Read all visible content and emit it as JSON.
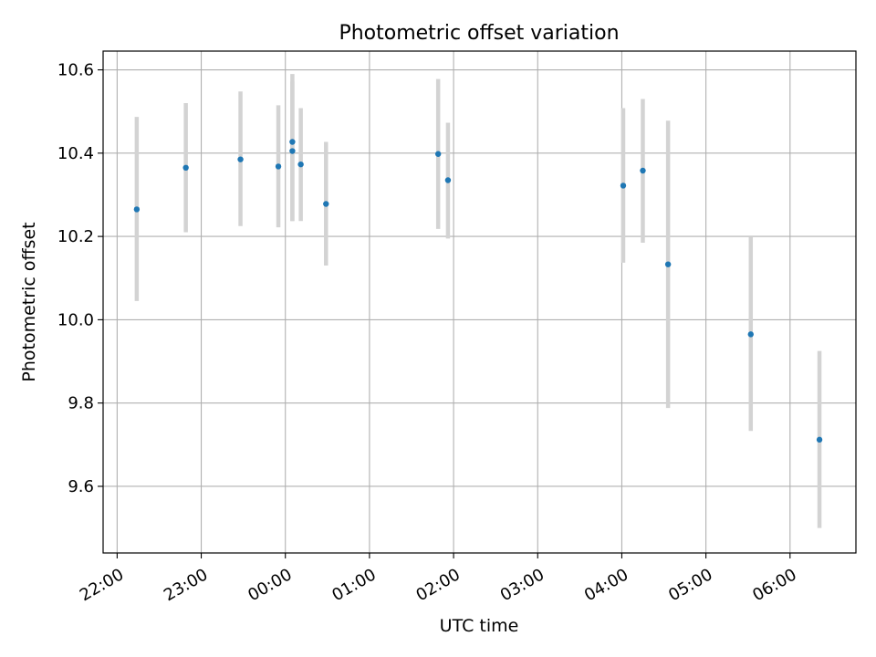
{
  "chart_data": {
    "type": "scatter",
    "title": "Photometric offset variation",
    "xlabel": "UTC time",
    "ylabel": "Photometric offset",
    "x_axis": {
      "kind": "time",
      "range": [
        "21:50",
        "06:47"
      ],
      "ticks": [
        "22:00",
        "23:00",
        "00:00",
        "01:00",
        "02:00",
        "03:00",
        "04:00",
        "05:00",
        "06:00"
      ]
    },
    "y_axis": {
      "range": [
        9.44,
        10.645
      ],
      "ticks": [
        "9.6",
        "9.8",
        "10.0",
        "10.2",
        "10.4",
        "10.6"
      ]
    },
    "grid": true,
    "points": [
      {
        "x": "22:14",
        "y": 10.265,
        "low": 10.045,
        "high": 10.487
      },
      {
        "x": "22:49",
        "y": 10.365,
        "low": 10.21,
        "high": 10.52
      },
      {
        "x": "23:28",
        "y": 10.385,
        "low": 10.225,
        "high": 10.548
      },
      {
        "x": "23:55",
        "y": 10.368,
        "low": 10.222,
        "high": 10.515
      },
      {
        "x": "00:05",
        "y": 10.427,
        "low": 10.237,
        "high": 10.59
      },
      {
        "x": "00:05",
        "y": 10.405,
        "low": 10.237,
        "high": 10.572
      },
      {
        "x": "00:11",
        "y": 10.373,
        "low": 10.237,
        "high": 10.508
      },
      {
        "x": "00:29",
        "y": 10.278,
        "low": 10.13,
        "high": 10.427
      },
      {
        "x": "01:49",
        "y": 10.398,
        "low": 10.218,
        "high": 10.578
      },
      {
        "x": "01:56",
        "y": 10.335,
        "low": 10.195,
        "high": 10.473
      },
      {
        "x": "04:01",
        "y": 10.322,
        "low": 10.137,
        "high": 10.508
      },
      {
        "x": "04:15",
        "y": 10.358,
        "low": 10.185,
        "high": 10.53
      },
      {
        "x": "04:33",
        "y": 10.133,
        "low": 9.788,
        "high": 10.478
      },
      {
        "x": "05:32",
        "y": 9.965,
        "low": 9.733,
        "high": 10.198
      },
      {
        "x": "06:21",
        "y": 9.712,
        "low": 9.5,
        "high": 9.925
      }
    ],
    "colors": {
      "marker": "#1f77b4",
      "errorbar": "#d3d3d3",
      "grid": "#b0b0b0"
    }
  }
}
